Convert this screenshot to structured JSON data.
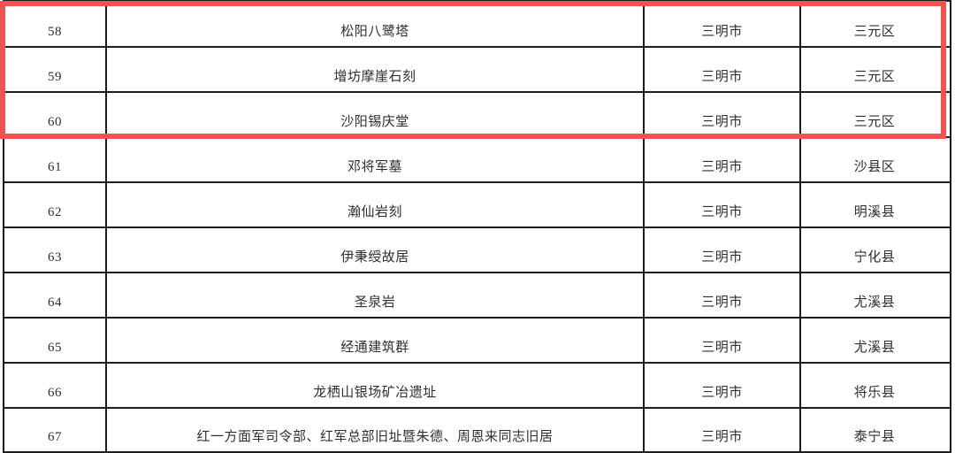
{
  "document": {
    "description_rows_visible": "58-67",
    "colors": {
      "grid_line": "#1c1c1c",
      "text": "#2e2e2e",
      "highlight_box": "#f15353",
      "background": "#ffffff"
    },
    "highlight": {
      "highlighted_row_numbers": [
        "58",
        "59",
        "60"
      ]
    }
  },
  "table": {
    "rows": [
      {
        "num": "58",
        "name": "松阳八鹭塔",
        "city": "三明市",
        "district": "三元区"
      },
      {
        "num": "59",
        "name": "增坊摩崖石刻",
        "city": "三明市",
        "district": "三元区"
      },
      {
        "num": "60",
        "name": "沙阳锡庆堂",
        "city": "三明市",
        "district": "三元区"
      },
      {
        "num": "61",
        "name": "邓将军墓",
        "city": "三明市",
        "district": "沙县区"
      },
      {
        "num": "62",
        "name": "瀚仙岩刻",
        "city": "三明市",
        "district": "明溪县"
      },
      {
        "num": "63",
        "name": "伊秉绶故居",
        "city": "三明市",
        "district": "宁化县"
      },
      {
        "num": "64",
        "name": "圣泉岩",
        "city": "三明市",
        "district": "尤溪县"
      },
      {
        "num": "65",
        "name": "经通建筑群",
        "city": "三明市",
        "district": "尤溪县"
      },
      {
        "num": "66",
        "name": "龙栖山银场矿冶遗址",
        "city": "三明市",
        "district": "将乐县"
      },
      {
        "num": "67",
        "name": "红一方面军司令部、红军总部旧址暨朱德、周恩来同志旧居",
        "city": "三明市",
        "district": "泰宁县"
      }
    ]
  }
}
